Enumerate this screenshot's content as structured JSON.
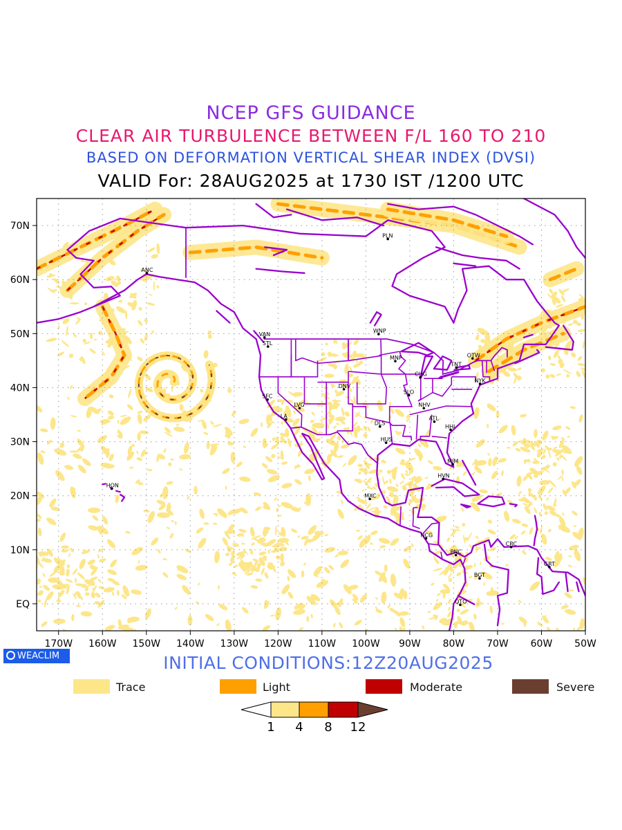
{
  "titles": {
    "line1": "NCEP GFS GUIDANCE",
    "line2": "CLEAR AIR TURBULENCE BETWEEN F/L 160 TO 210",
    "line3": "BASED ON DEFORMATION VERTICAL SHEAR INDEX (DVSI)",
    "line4": "VALID For: 28AUG2025 at 1730 IST /1200 UTC"
  },
  "badge": "WEACLIM",
  "initial_conditions": "INITIAL CONDITIONS:12Z20AUG2025",
  "map": {
    "lon_range": [
      -175,
      -50
    ],
    "lat_range": [
      -5,
      75
    ],
    "x_ticks": [
      "170W",
      "160W",
      "150W",
      "140W",
      "130W",
      "120W",
      "110W",
      "100W",
      "90W",
      "80W",
      "70W",
      "60W",
      "50W"
    ],
    "y_ticks": [
      "70N",
      "60N",
      "50N",
      "40N",
      "30N",
      "20N",
      "10N",
      "EQ"
    ],
    "stations": [
      {
        "name": "ANC",
        "lon": -149.9,
        "lat": 61.2
      },
      {
        "name": "PLN",
        "lon": -95.0,
        "lat": 67.5
      },
      {
        "name": "VAN",
        "lon": -123.1,
        "lat": 49.3
      },
      {
        "name": "STL",
        "lon": -122.3,
        "lat": 47.6
      },
      {
        "name": "WNP",
        "lon": -97.1,
        "lat": 49.9
      },
      {
        "name": "MNP",
        "lon": -93.3,
        "lat": 44.9
      },
      {
        "name": "TNT",
        "lon": -79.4,
        "lat": 43.7
      },
      {
        "name": "OTW",
        "lon": -75.7,
        "lat": 45.4
      },
      {
        "name": "CHG",
        "lon": -87.6,
        "lat": 41.9
      },
      {
        "name": "NYK",
        "lon": -74.0,
        "lat": 40.7
      },
      {
        "name": "DNV",
        "lon": -105.0,
        "lat": 39.7
      },
      {
        "name": "SFC",
        "lon": -122.4,
        "lat": 37.8
      },
      {
        "name": "SLO",
        "lon": -90.2,
        "lat": 38.6
      },
      {
        "name": "LVG",
        "lon": -115.1,
        "lat": 36.2
      },
      {
        "name": "NHV",
        "lon": -86.8,
        "lat": 36.2
      },
      {
        "name": "LA",
        "lon": -118.2,
        "lat": 34.1
      },
      {
        "name": "ATL",
        "lon": -84.4,
        "lat": 33.7
      },
      {
        "name": "DLS",
        "lon": -96.8,
        "lat": 32.8
      },
      {
        "name": "HHI",
        "lon": -80.7,
        "lat": 32.2
      },
      {
        "name": "HUS",
        "lon": -95.4,
        "lat": 29.8
      },
      {
        "name": "MIM",
        "lon": -80.2,
        "lat": 25.8
      },
      {
        "name": "HVN",
        "lon": -82.4,
        "lat": 23.1
      },
      {
        "name": "HON",
        "lon": -157.9,
        "lat": 21.3
      },
      {
        "name": "MXC",
        "lon": -99.1,
        "lat": 19.4
      },
      {
        "name": "NCG",
        "lon": -86.3,
        "lat": 12.1
      },
      {
        "name": "CRC",
        "lon": -66.9,
        "lat": 10.5
      },
      {
        "name": "PNC",
        "lon": -79.5,
        "lat": 9.0
      },
      {
        "name": "GRT",
        "lon": -58.2,
        "lat": 6.8
      },
      {
        "name": "BGT",
        "lon": -74.1,
        "lat": 4.7
      },
      {
        "name": "QTO",
        "lon": -78.5,
        "lat": -0.2
      }
    ]
  },
  "legend": [
    {
      "label": "Trace",
      "color": "#fde68a"
    },
    {
      "label": "Light",
      "color": "#ffa000"
    },
    {
      "label": "Moderate",
      "color": "#c00000"
    },
    {
      "label": "Severe",
      "color": "#6b3f30"
    }
  ],
  "colorbar": {
    "ticks": [
      "1",
      "4",
      "8",
      "12"
    ],
    "colors": [
      "#ffffff",
      "#fde68a",
      "#ffa000",
      "#c00000",
      "#6b3f30"
    ]
  },
  "colors": {
    "boundary": "#9900cc",
    "grid": "#9a9a9a"
  }
}
